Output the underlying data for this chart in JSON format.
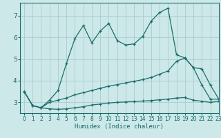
{
  "xlabel": "Humidex (Indice chaleur)",
  "bg_color": "#cce8e8",
  "grid_color": "#aacccc",
  "line_color": "#1a6b6b",
  "xlim": [
    -0.5,
    23
  ],
  "ylim": [
    2.5,
    7.6
  ],
  "yticks": [
    3,
    4,
    5,
    6,
    7
  ],
  "xticks": [
    0,
    1,
    2,
    3,
    4,
    5,
    6,
    7,
    8,
    9,
    10,
    11,
    12,
    13,
    14,
    15,
    16,
    17,
    18,
    19,
    20,
    21,
    22,
    23
  ],
  "series1_x": [
    0,
    1,
    2,
    3,
    4,
    5,
    6,
    7,
    8,
    9,
    10,
    11,
    12,
    13,
    14,
    15,
    16,
    17,
    18,
    19,
    20,
    21,
    22,
    23
  ],
  "series1_y": [
    3.5,
    2.85,
    2.75,
    3.1,
    3.55,
    4.8,
    5.95,
    6.55,
    5.75,
    6.3,
    6.65,
    5.85,
    5.65,
    5.7,
    6.05,
    6.75,
    7.15,
    7.35,
    5.2,
    5.05,
    4.6,
    3.8,
    3.15,
    3.15
  ],
  "series2_x": [
    0,
    1,
    2,
    3,
    4,
    5,
    6,
    7,
    8,
    9,
    10,
    11,
    12,
    13,
    14,
    15,
    16,
    17,
    18,
    19,
    20,
    21,
    22,
    23
  ],
  "series2_y": [
    3.5,
    2.85,
    2.75,
    3.0,
    3.1,
    3.2,
    3.35,
    3.45,
    3.55,
    3.65,
    3.75,
    3.82,
    3.9,
    3.97,
    4.05,
    4.15,
    4.3,
    4.45,
    4.9,
    5.05,
    4.6,
    4.55,
    3.8,
    3.15
  ],
  "series3_x": [
    0,
    1,
    2,
    3,
    4,
    5,
    6,
    7,
    8,
    9,
    10,
    11,
    12,
    13,
    14,
    15,
    16,
    17,
    18,
    19,
    20,
    21,
    22,
    23
  ],
  "series3_y": [
    3.5,
    2.85,
    2.75,
    2.7,
    2.68,
    2.7,
    2.75,
    2.8,
    2.88,
    2.92,
    2.97,
    3.0,
    3.02,
    3.04,
    3.06,
    3.08,
    3.12,
    3.15,
    3.2,
    3.22,
    3.1,
    3.05,
    3.0,
    3.05
  ]
}
